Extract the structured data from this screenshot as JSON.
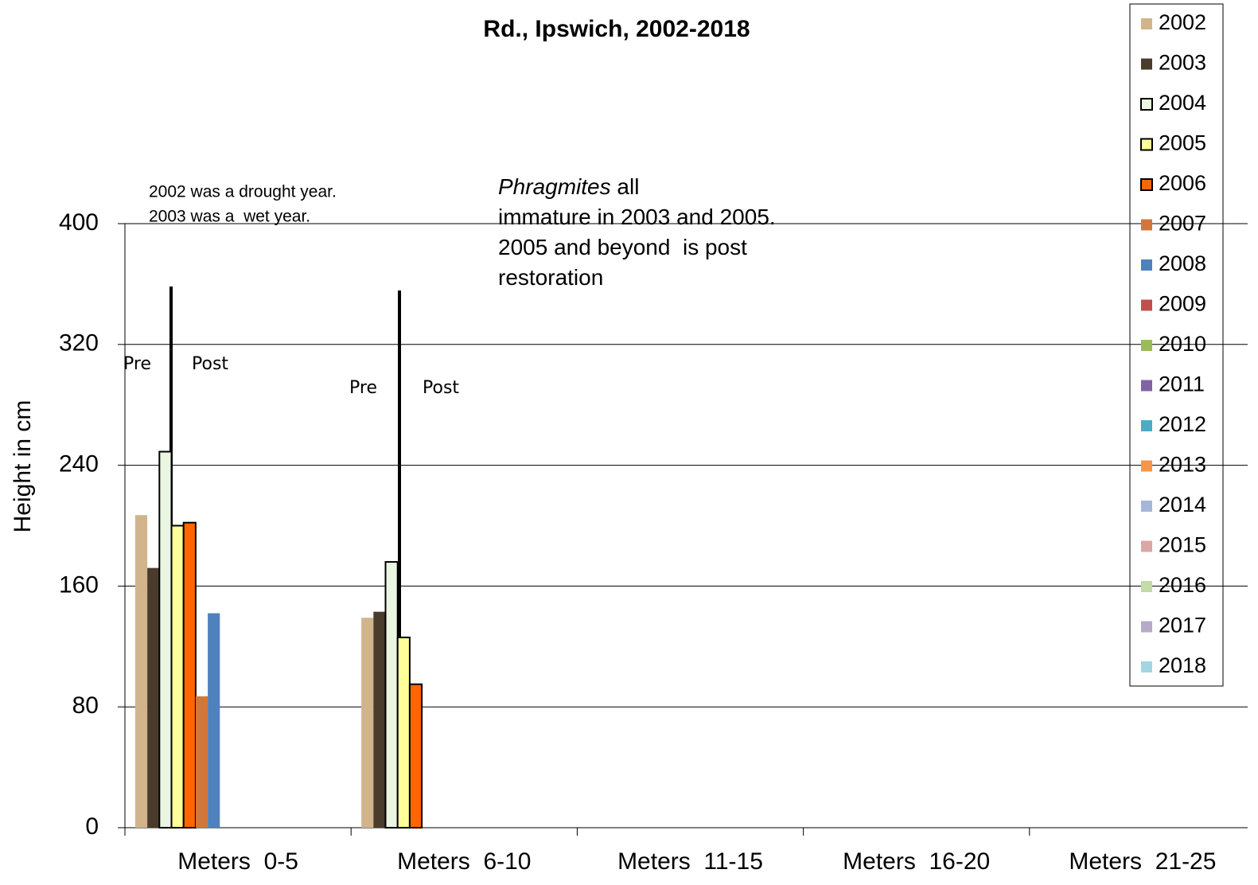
{
  "chart_data": {
    "type": "bar",
    "title": "Rd., Ipswich, 2002-2018",
    "y_label": "Height in cm",
    "categories": [
      "Meters  0-5",
      "Meters  6-10",
      "Meters  11-15",
      "Meters  16-20",
      "Meters  21-25"
    ],
    "series": [
      {
        "name": "2002",
        "color": "#d2b48c",
        "values": [
          207,
          139,
          null,
          null,
          null
        ]
      },
      {
        "name": "2003",
        "color": "#4a3c2c",
        "values": [
          172,
          143,
          null,
          null,
          null
        ]
      },
      {
        "name": "2004",
        "color": "#eaf5e2",
        "values": [
          249,
          176,
          null,
          null,
          null
        ]
      },
      {
        "name": "2005",
        "color": "#ffff99",
        "values": [
          200,
          126,
          null,
          null,
          null
        ]
      },
      {
        "name": "2006",
        "color": "#ff6600",
        "values": [
          202,
          95,
          null,
          null,
          null
        ]
      },
      {
        "name": "2007",
        "color": "#d2773a",
        "values": [
          87,
          null,
          null,
          null,
          null
        ]
      },
      {
        "name": "2008",
        "color": "#4f81bd",
        "values": [
          142,
          null,
          null,
          null,
          null
        ]
      },
      {
        "name": "2009",
        "color": "#c0504d",
        "values": [
          null,
          null,
          null,
          null,
          null
        ]
      },
      {
        "name": "2010",
        "color": "#9bbb59",
        "values": [
          null,
          null,
          null,
          null,
          null
        ]
      },
      {
        "name": "2011",
        "color": "#8064a2",
        "values": [
          null,
          null,
          null,
          null,
          null
        ]
      },
      {
        "name": "2012",
        "color": "#4bacc6",
        "values": [
          null,
          null,
          null,
          null,
          null
        ]
      },
      {
        "name": "2013",
        "color": "#f79646",
        "values": [
          null,
          null,
          null,
          null,
          null
        ]
      },
      {
        "name": "2014",
        "color": "#a5b6d9",
        "values": [
          null,
          null,
          null,
          null,
          null
        ]
      },
      {
        "name": "2015",
        "color": "#dba6a5",
        "values": [
          null,
          null,
          null,
          null,
          null
        ]
      },
      {
        "name": "2016",
        "color": "#c5d9a9",
        "values": [
          null,
          null,
          null,
          null,
          null
        ]
      },
      {
        "name": "2017",
        "color": "#b7a9c9",
        "values": [
          null,
          null,
          null,
          null,
          null
        ]
      },
      {
        "name": "2018",
        "color": "#a5d5e2",
        "values": [
          null,
          null,
          null,
          null,
          null
        ]
      }
    ],
    "ylim": [
      0,
      400
    ],
    "yticks": [
      0,
      80,
      160,
      240,
      320,
      400
    ],
    "grid": true,
    "legend": "right",
    "annotations": {
      "climate": [
        "2002 was a drought year.",
        "2003 was a  wet year."
      ],
      "phragmites": [
        [
          "Phragmites",
          " all"
        ],
        [
          "immature in 2003 and 2005."
        ],
        [
          "2005 and beyond  is post"
        ],
        [
          "restoration"
        ]
      ],
      "pre_post": [
        "Pre",
        "Post",
        "Pre",
        "Post"
      ]
    }
  }
}
